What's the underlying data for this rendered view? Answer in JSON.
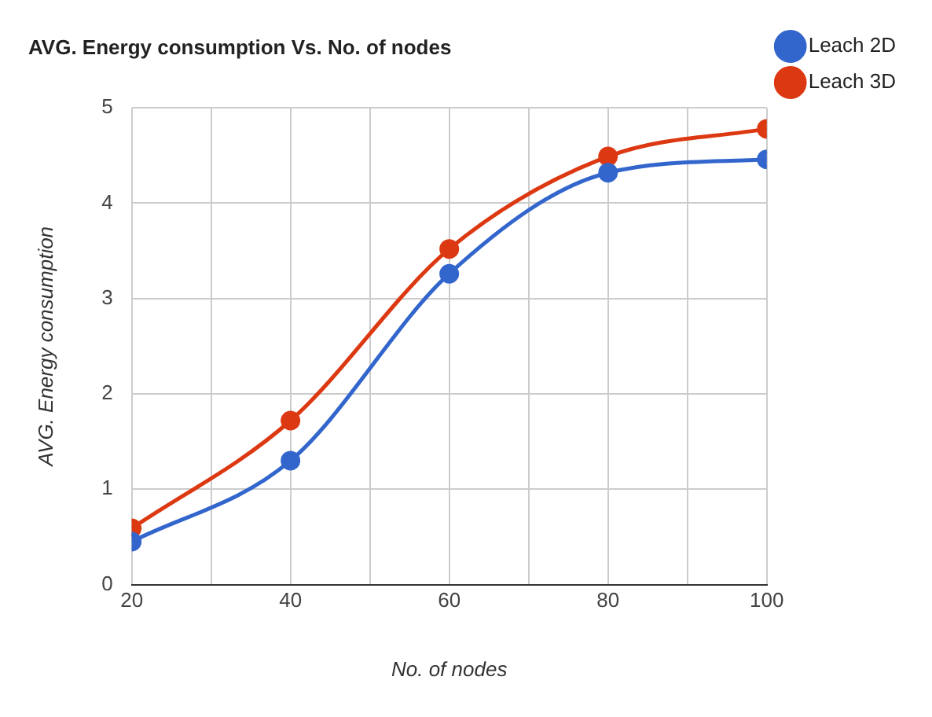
{
  "chart_data": {
    "type": "line",
    "title": "AVG. Energy consumption Vs. No. of nodes",
    "xlabel": "No. of nodes",
    "ylabel": "AVG. Energy consumption",
    "x": [
      20,
      40,
      60,
      80,
      100
    ],
    "series": [
      {
        "name": "Leach 2D",
        "color": "#3366cc",
        "values": [
          0.45,
          1.3,
          3.26,
          4.32,
          4.46
        ]
      },
      {
        "name": "Leach 3D",
        "color": "#dc3912",
        "values": [
          0.59,
          1.72,
          3.52,
          4.49,
          4.78
        ]
      }
    ],
    "xlim": [
      20,
      100
    ],
    "xticks": [
      20,
      {
        "value": 30,
        "label": null
      },
      40,
      {
        "value": 50,
        "label": null
      },
      60,
      {
        "value": 70,
        "label": null
      },
      80,
      {
        "value": 90,
        "label": null
      },
      100
    ],
    "ylim": [
      0,
      5
    ],
    "yticks": [
      0,
      1,
      2,
      3,
      4,
      5
    ],
    "grid": true,
    "legend": "top right",
    "marker": "circle",
    "line_style": "solid"
  }
}
